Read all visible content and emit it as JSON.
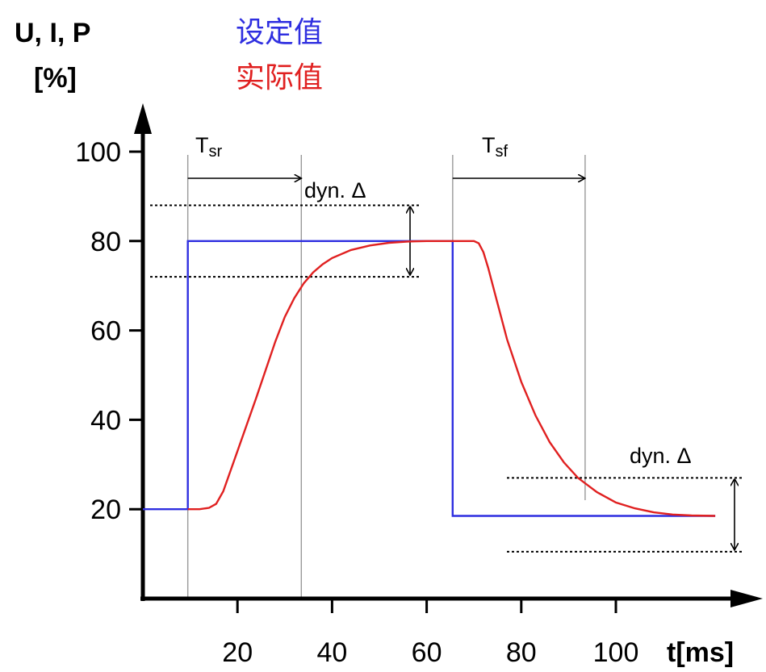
{
  "chart_data": {
    "type": "line",
    "ylabel_line1": "U, I, P",
    "ylabel_line2": "[%]",
    "xlabel": "t[ms]",
    "legend": [
      {
        "name": "设定值",
        "color": "#2f2fe0"
      },
      {
        "name": "实际值",
        "color": "#e02020"
      }
    ],
    "x_ticks": [
      20,
      40,
      60,
      80,
      100
    ],
    "y_ticks": [
      20,
      40,
      60,
      80,
      100
    ],
    "xlim": [
      0,
      130
    ],
    "ylim": [
      0,
      110
    ],
    "series": [
      {
        "name": "设定值",
        "color": "#2f2fe0",
        "x": [
          0,
          9.5,
          9.5,
          65.5,
          65.5,
          121
        ],
        "y": [
          20,
          20,
          80,
          80,
          18.5,
          18.5
        ]
      },
      {
        "name": "实际值",
        "color": "#e02020",
        "x": [
          9.5,
          12,
          14,
          15.5,
          17,
          20,
          24,
          28,
          30,
          32,
          34,
          36,
          38,
          40,
          44,
          48,
          52,
          56,
          60,
          64,
          68,
          70,
          71,
          72,
          73,
          75,
          77,
          80,
          83,
          86,
          89,
          92,
          96,
          100,
          104,
          108,
          112,
          116,
          121
        ],
        "y": [
          20,
          20,
          20.3,
          21.2,
          24,
          33,
          45,
          57.5,
          63,
          67.2,
          70.5,
          73,
          74.8,
          76.2,
          78,
          79,
          79.6,
          79.9,
          80,
          80,
          80,
          80,
          79.5,
          77.5,
          74,
          66,
          58,
          48.5,
          41,
          35,
          30.5,
          27,
          23.8,
          21.5,
          20.2,
          19.3,
          18.8,
          18.6,
          18.5
        ]
      }
    ],
    "annotations": {
      "t_rise": {
        "main": "T",
        "sub": "sr"
      },
      "t_fall": {
        "main": "T",
        "sub": "sf"
      },
      "dyn_label": "dyn. Δ",
      "ref_lines_x": [
        9.5,
        33.5,
        65.5,
        93.5
      ],
      "rise_band_y": [
        88,
        72
      ],
      "fall_band_y": [
        27,
        10.5
      ]
    }
  }
}
